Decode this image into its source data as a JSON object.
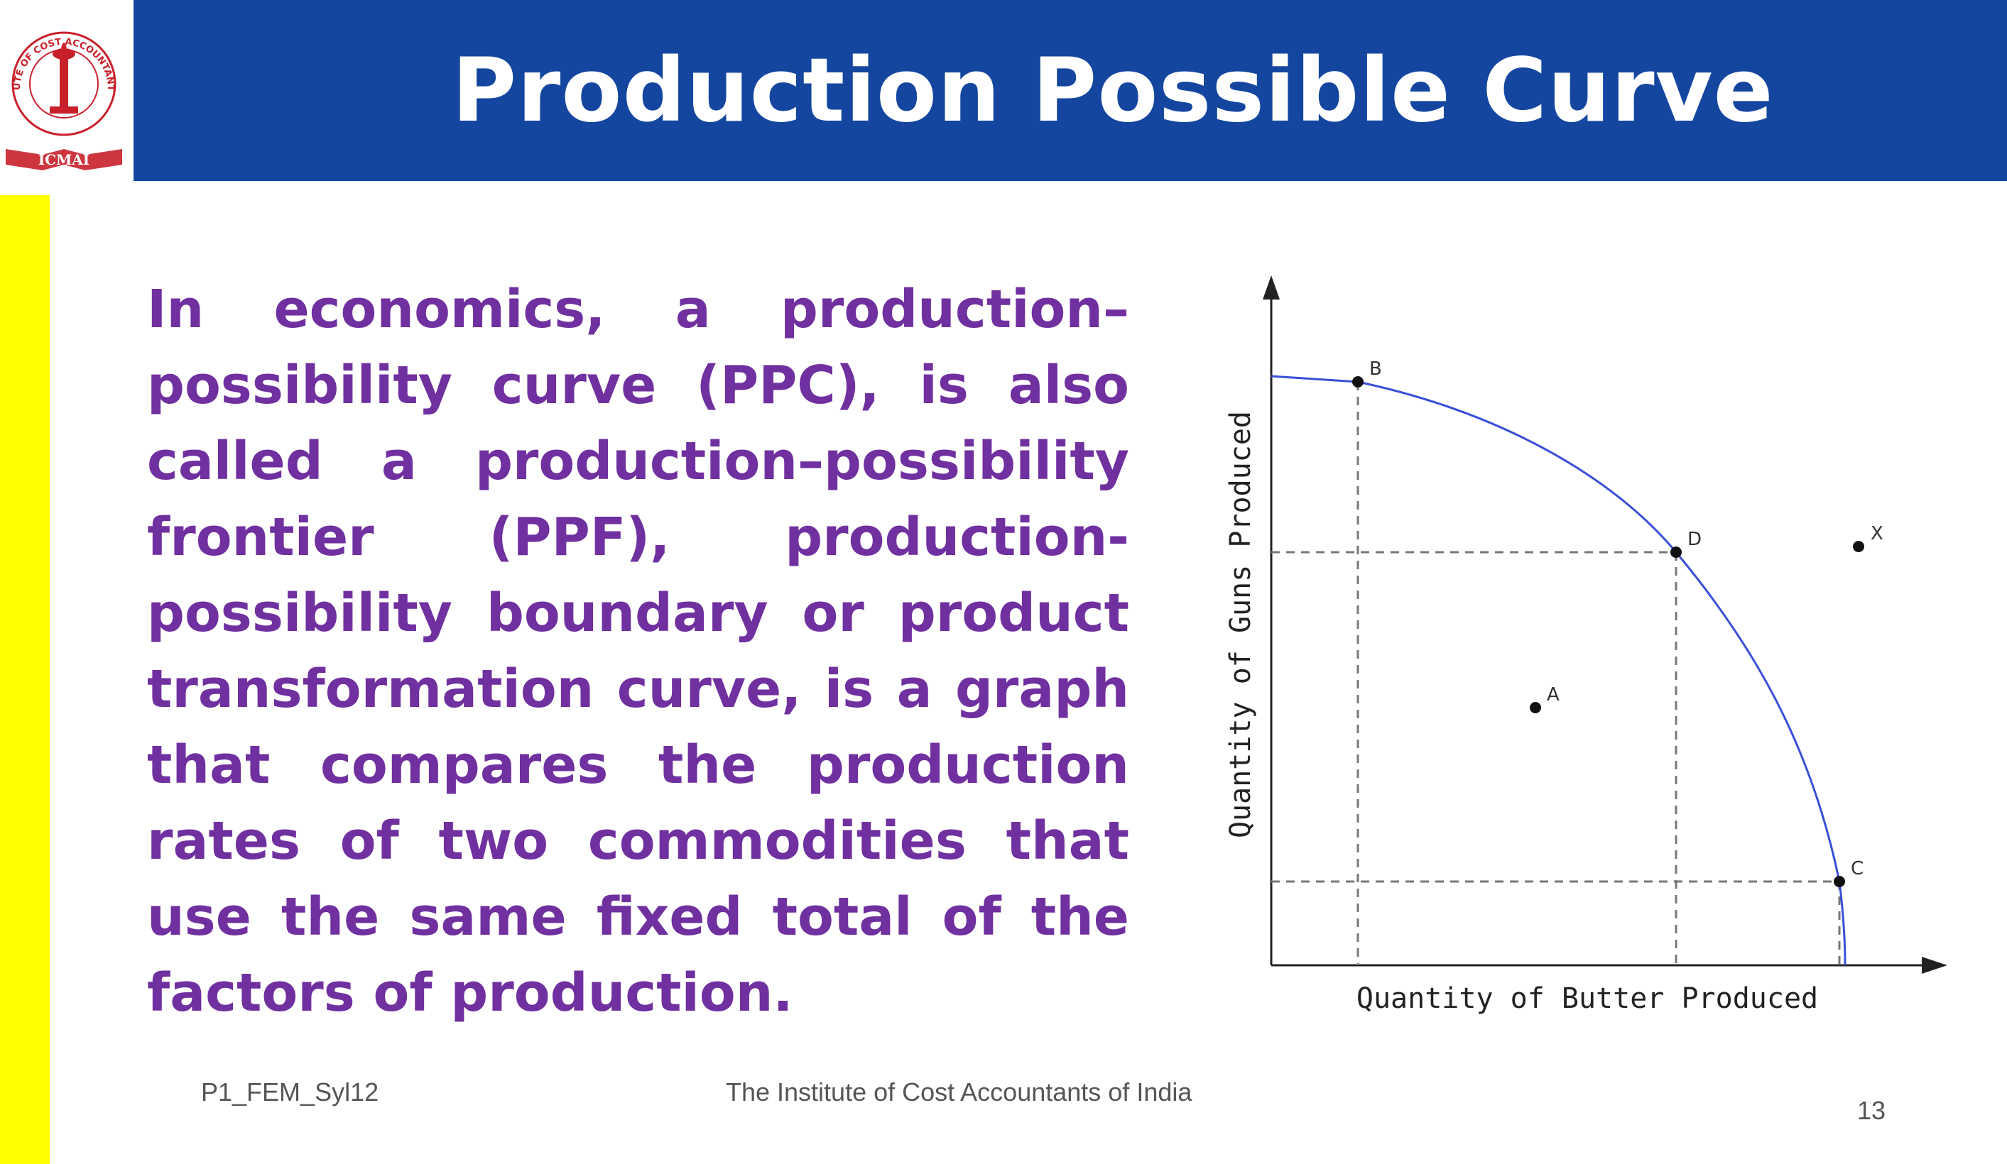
{
  "colors": {
    "title_bar": "#1446a0",
    "strip": "#ffff00",
    "body_text": "#7030a0",
    "curve": "#3a4fd8",
    "logo_red": "#c8202a"
  },
  "logo": {
    "icon": "institute-seal-icon",
    "ring_text": "THE INSTITUTE OF COST ACCOUNTANTS OF INDIA",
    "center_mark": "ICMAI"
  },
  "header": {
    "title": "Production Possible Curve"
  },
  "main": {
    "paragraph": "In economics, a production–possibility curve (PPC), is also called a production–possibility frontier (PPF), production-possibility boundary or product transformation curve, is a graph that compares the production rates of two commodities that use the same fixed total of the factors of production."
  },
  "diagram": {
    "x_axis_label": "Quantity of Butter Produced",
    "y_axis_label": "Quantity of Guns Produced",
    "points": {
      "A": "A",
      "B": "B",
      "C": "C",
      "D": "D",
      "X": "X"
    }
  },
  "footer": {
    "code": "P1_FEM_Syl12",
    "organization": "The Institute of Cost Accountants of India",
    "page_number": "13"
  }
}
